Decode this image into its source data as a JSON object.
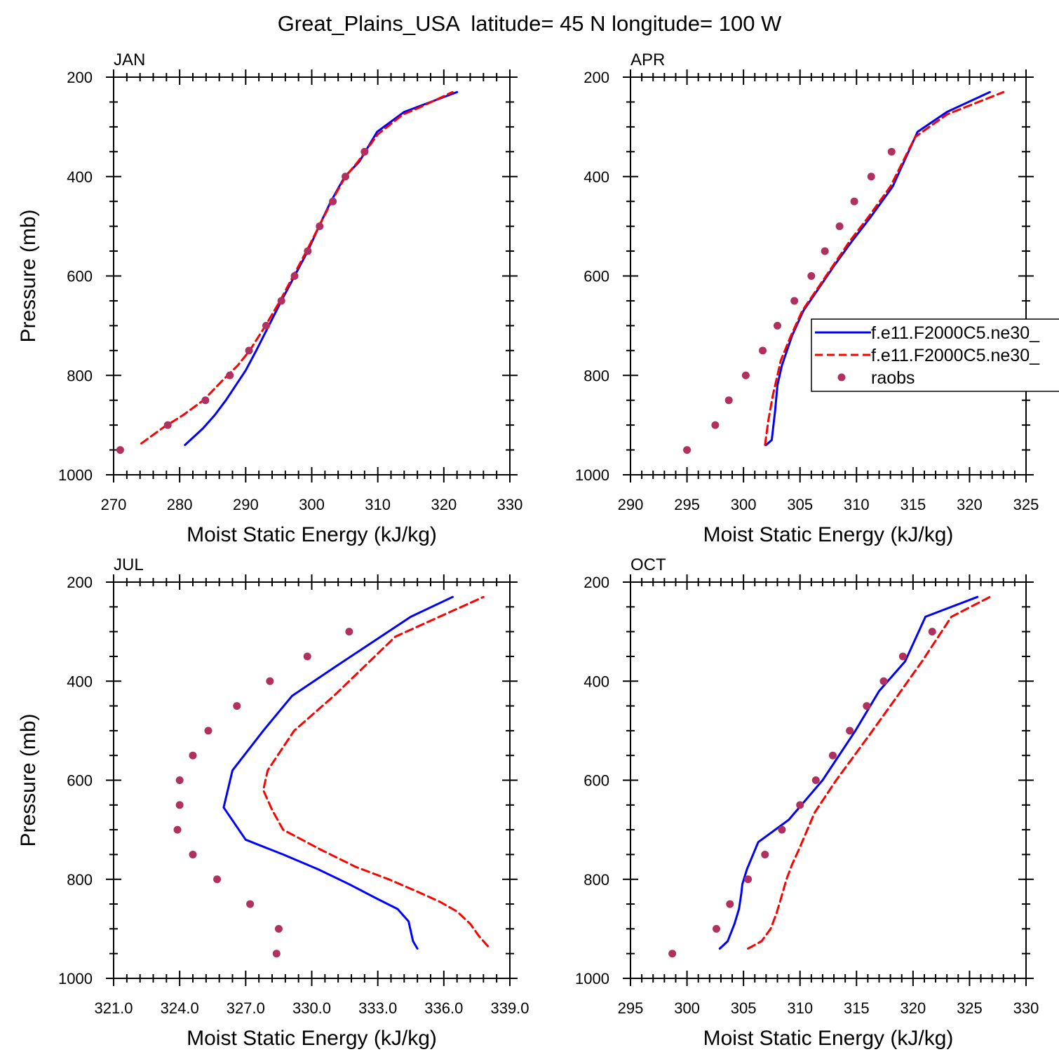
{
  "figure": {
    "title": "Great_Plains_USA  latitude= 45 N longitude= 100 W"
  },
  "legend": {
    "entries": [
      {
        "label": "f.e11.F2000C5.ne30_",
        "style": "solid",
        "color": "#0000ff"
      },
      {
        "label": "f.e11.F2000C5.ne30_",
        "style": "dashed",
        "color": "#ff0000"
      },
      {
        "label": "raobs",
        "style": "marker",
        "color": "#b03060"
      }
    ]
  },
  "colors": {
    "model_a": "#0000ff",
    "model_b": "#ff0000",
    "raobs": "#b03060"
  },
  "chart_data": [
    {
      "type": "line",
      "title": "JAN",
      "xlabel": "Moist Static Energy (kJ/kg)",
      "ylabel": "Pressure (mb)",
      "xlim": [
        270,
        330
      ],
      "ylim": [
        1000,
        200
      ],
      "xticks": [
        270,
        280,
        290,
        300,
        310,
        320,
        330
      ],
      "xtick_labels": [
        "270",
        "280",
        "290",
        "300",
        "310",
        "320",
        "330"
      ],
      "xminor_step": 2,
      "yticks": [
        200,
        400,
        600,
        800,
        1000
      ],
      "ytick_labels": [
        "200",
        "400",
        "600",
        "800",
        "1000"
      ],
      "yminor_step": 50,
      "grid": false,
      "series": [
        {
          "x": [
            280.8,
            283.5,
            285.3,
            287.0,
            288.5,
            290.0,
            291.6,
            293.5,
            295.4,
            297.4,
            299.4,
            301.1,
            302.9,
            305.0,
            307.2,
            309.9,
            314.0,
            322.0
          ],
          "y": [
            940,
            907,
            880,
            850,
            820,
            790,
            750,
            700,
            650,
            600,
            550,
            500,
            450,
            400,
            370,
            310,
            270,
            230
          ]
        },
        {
          "x": [
            274.2,
            277.5,
            280.5,
            283.6,
            286.5,
            288.8,
            290.6,
            293.0,
            295.2,
            297.2,
            299.2,
            301.1,
            303.0,
            305.1,
            307.0,
            310.0,
            313.8,
            316.5,
            321.3
          ],
          "y": [
            937,
            905,
            880,
            850,
            810,
            780,
            750,
            700,
            650,
            600,
            550,
            500,
            450,
            400,
            370,
            315,
            275,
            260,
            230
          ]
        },
        {
          "x": [
            271.0,
            278.2,
            283.9,
            287.6,
            290.5,
            293.1,
            295.4,
            297.4,
            299.4,
            301.2,
            303.2,
            305.1,
            308.0
          ],
          "y": [
            950,
            900,
            850,
            800,
            750,
            700,
            650,
            600,
            550,
            500,
            450,
            400,
            350
          ]
        }
      ]
    },
    {
      "type": "line",
      "title": "APR",
      "xlabel": "Moist Static Energy (kJ/kg)",
      "ylabel": "",
      "xlim": [
        290,
        325
      ],
      "ylim": [
        1000,
        200
      ],
      "xticks": [
        290,
        295,
        300,
        305,
        310,
        315,
        320,
        325
      ],
      "xtick_labels": [
        "290",
        "295",
        "300",
        "305",
        "310",
        "315",
        "320",
        "325"
      ],
      "xminor_step": 1,
      "yticks": [
        200,
        400,
        600,
        800,
        1000
      ],
      "ytick_labels": [
        "200",
        "400",
        "600",
        "800",
        "1000"
      ],
      "yminor_step": 50,
      "grid": false,
      "series": [
        {
          "x": [
            302.0,
            302.5,
            302.8,
            303.0,
            303.4,
            304.3,
            305.3,
            306.5,
            308.0,
            309.6,
            311.3,
            313.2,
            315.4,
            318.0,
            321.8
          ],
          "y": [
            940,
            930,
            870,
            820,
            780,
            720,
            670,
            630,
            580,
            530,
            480,
            420,
            310,
            270,
            230
          ]
        },
        {
          "x": [
            301.9,
            302.2,
            302.6,
            302.9,
            303.3,
            304.2,
            305.2,
            306.4,
            307.9,
            309.4,
            311.1,
            313.0,
            315.2,
            318.0,
            323.0
          ],
          "y": [
            940,
            890,
            840,
            810,
            770,
            720,
            670,
            630,
            580,
            530,
            480,
            420,
            320,
            275,
            230
          ]
        },
        {
          "x": [
            295.0,
            297.5,
            298.7,
            300.2,
            301.7,
            303.0,
            304.5,
            306.0,
            307.2,
            308.5,
            309.8,
            311.3,
            313.1
          ],
          "y": [
            950,
            900,
            850,
            800,
            750,
            700,
            650,
            600,
            550,
            500,
            450,
            400,
            350
          ]
        }
      ]
    },
    {
      "type": "line",
      "title": "JUL",
      "xlabel": "Moist Static Energy (kJ/kg)",
      "ylabel": "Pressure (mb)",
      "xlim": [
        321.0,
        339.0
      ],
      "ylim": [
        1000,
        200
      ],
      "xticks": [
        321.0,
        324.0,
        327.0,
        330.0,
        333.0,
        336.0,
        339.0
      ],
      "xtick_labels": [
        "321.0",
        "324.0",
        "327.0",
        "330.0",
        "333.0",
        "336.0",
        "339.0"
      ],
      "xminor_step": 0.6,
      "yticks": [
        200,
        400,
        600,
        800,
        1000
      ],
      "ytick_labels": [
        "200",
        "400",
        "600",
        "800",
        "1000"
      ],
      "yminor_step": 50,
      "grid": false,
      "series": [
        {
          "x": [
            334.8,
            334.6,
            334.4,
            333.9,
            333.0,
            331.7,
            330.3,
            328.7,
            327.0,
            326.0,
            326.4,
            327.8,
            329.1,
            331.1,
            334.5,
            336.4
          ],
          "y": [
            940,
            925,
            885,
            860,
            840,
            810,
            780,
            750,
            720,
            655,
            580,
            500,
            430,
            370,
            270,
            230
          ]
        },
        {
          "x": [
            338.0,
            337.6,
            337.2,
            336.6,
            335.8,
            334.8,
            333.5,
            332.0,
            330.4,
            328.7,
            328.2,
            327.8,
            328.0,
            329.2,
            331.0,
            333.8,
            335.8,
            337.8
          ],
          "y": [
            935,
            915,
            890,
            865,
            845,
            825,
            800,
            775,
            740,
            700,
            660,
            620,
            580,
            500,
            430,
            310,
            270,
            230
          ]
        },
        {
          "x": [
            328.4,
            328.5,
            327.2,
            325.7,
            324.6,
            323.9,
            324.0,
            324.0,
            324.6,
            325.3,
            326.6,
            328.1,
            329.8,
            331.7
          ],
          "y": [
            950,
            900,
            850,
            800,
            750,
            700,
            650,
            600,
            550,
            500,
            450,
            400,
            350,
            300
          ]
        }
      ]
    },
    {
      "type": "line",
      "title": "OCT",
      "xlabel": "Moist Static Energy (kJ/kg)",
      "ylabel": "",
      "xlim": [
        295,
        330
      ],
      "ylim": [
        1000,
        200
      ],
      "xticks": [
        295,
        300,
        305,
        310,
        315,
        320,
        325,
        330
      ],
      "xtick_labels": [
        "295",
        "300",
        "305",
        "310",
        "315",
        "320",
        "325",
        "330"
      ],
      "xminor_step": 1,
      "yticks": [
        200,
        400,
        600,
        800,
        1000
      ],
      "ytick_labels": [
        "200",
        "400",
        "600",
        "800",
        "1000"
      ],
      "yminor_step": 50,
      "grid": false,
      "series": [
        {
          "x": [
            302.9,
            303.6,
            304.2,
            304.6,
            304.8,
            304.9,
            305.3,
            306.3,
            309.0,
            312.0,
            314.9,
            317.0,
            319.3,
            321.1,
            325.7
          ],
          "y": [
            940,
            925,
            890,
            860,
            830,
            810,
            780,
            725,
            680,
            600,
            500,
            420,
            360,
            270,
            230
          ]
        },
        {
          "x": [
            305.4,
            306.6,
            307.4,
            307.9,
            308.3,
            308.8,
            309.3,
            309.9,
            311.3,
            313.2,
            316.1,
            318.3,
            320.8,
            323.4,
            326.8
          ],
          "y": [
            940,
            925,
            900,
            870,
            840,
            800,
            770,
            740,
            665,
            600,
            510,
            440,
            360,
            270,
            230
          ]
        },
        {
          "x": [
            298.7,
            302.6,
            303.8,
            305.4,
            306.9,
            308.4,
            310.0,
            311.4,
            312.9,
            314.4,
            315.9,
            317.4,
            319.1,
            321.7
          ],
          "y": [
            950,
            900,
            850,
            800,
            750,
            700,
            650,
            600,
            550,
            500,
            450,
            400,
            350,
            300
          ]
        }
      ]
    }
  ]
}
